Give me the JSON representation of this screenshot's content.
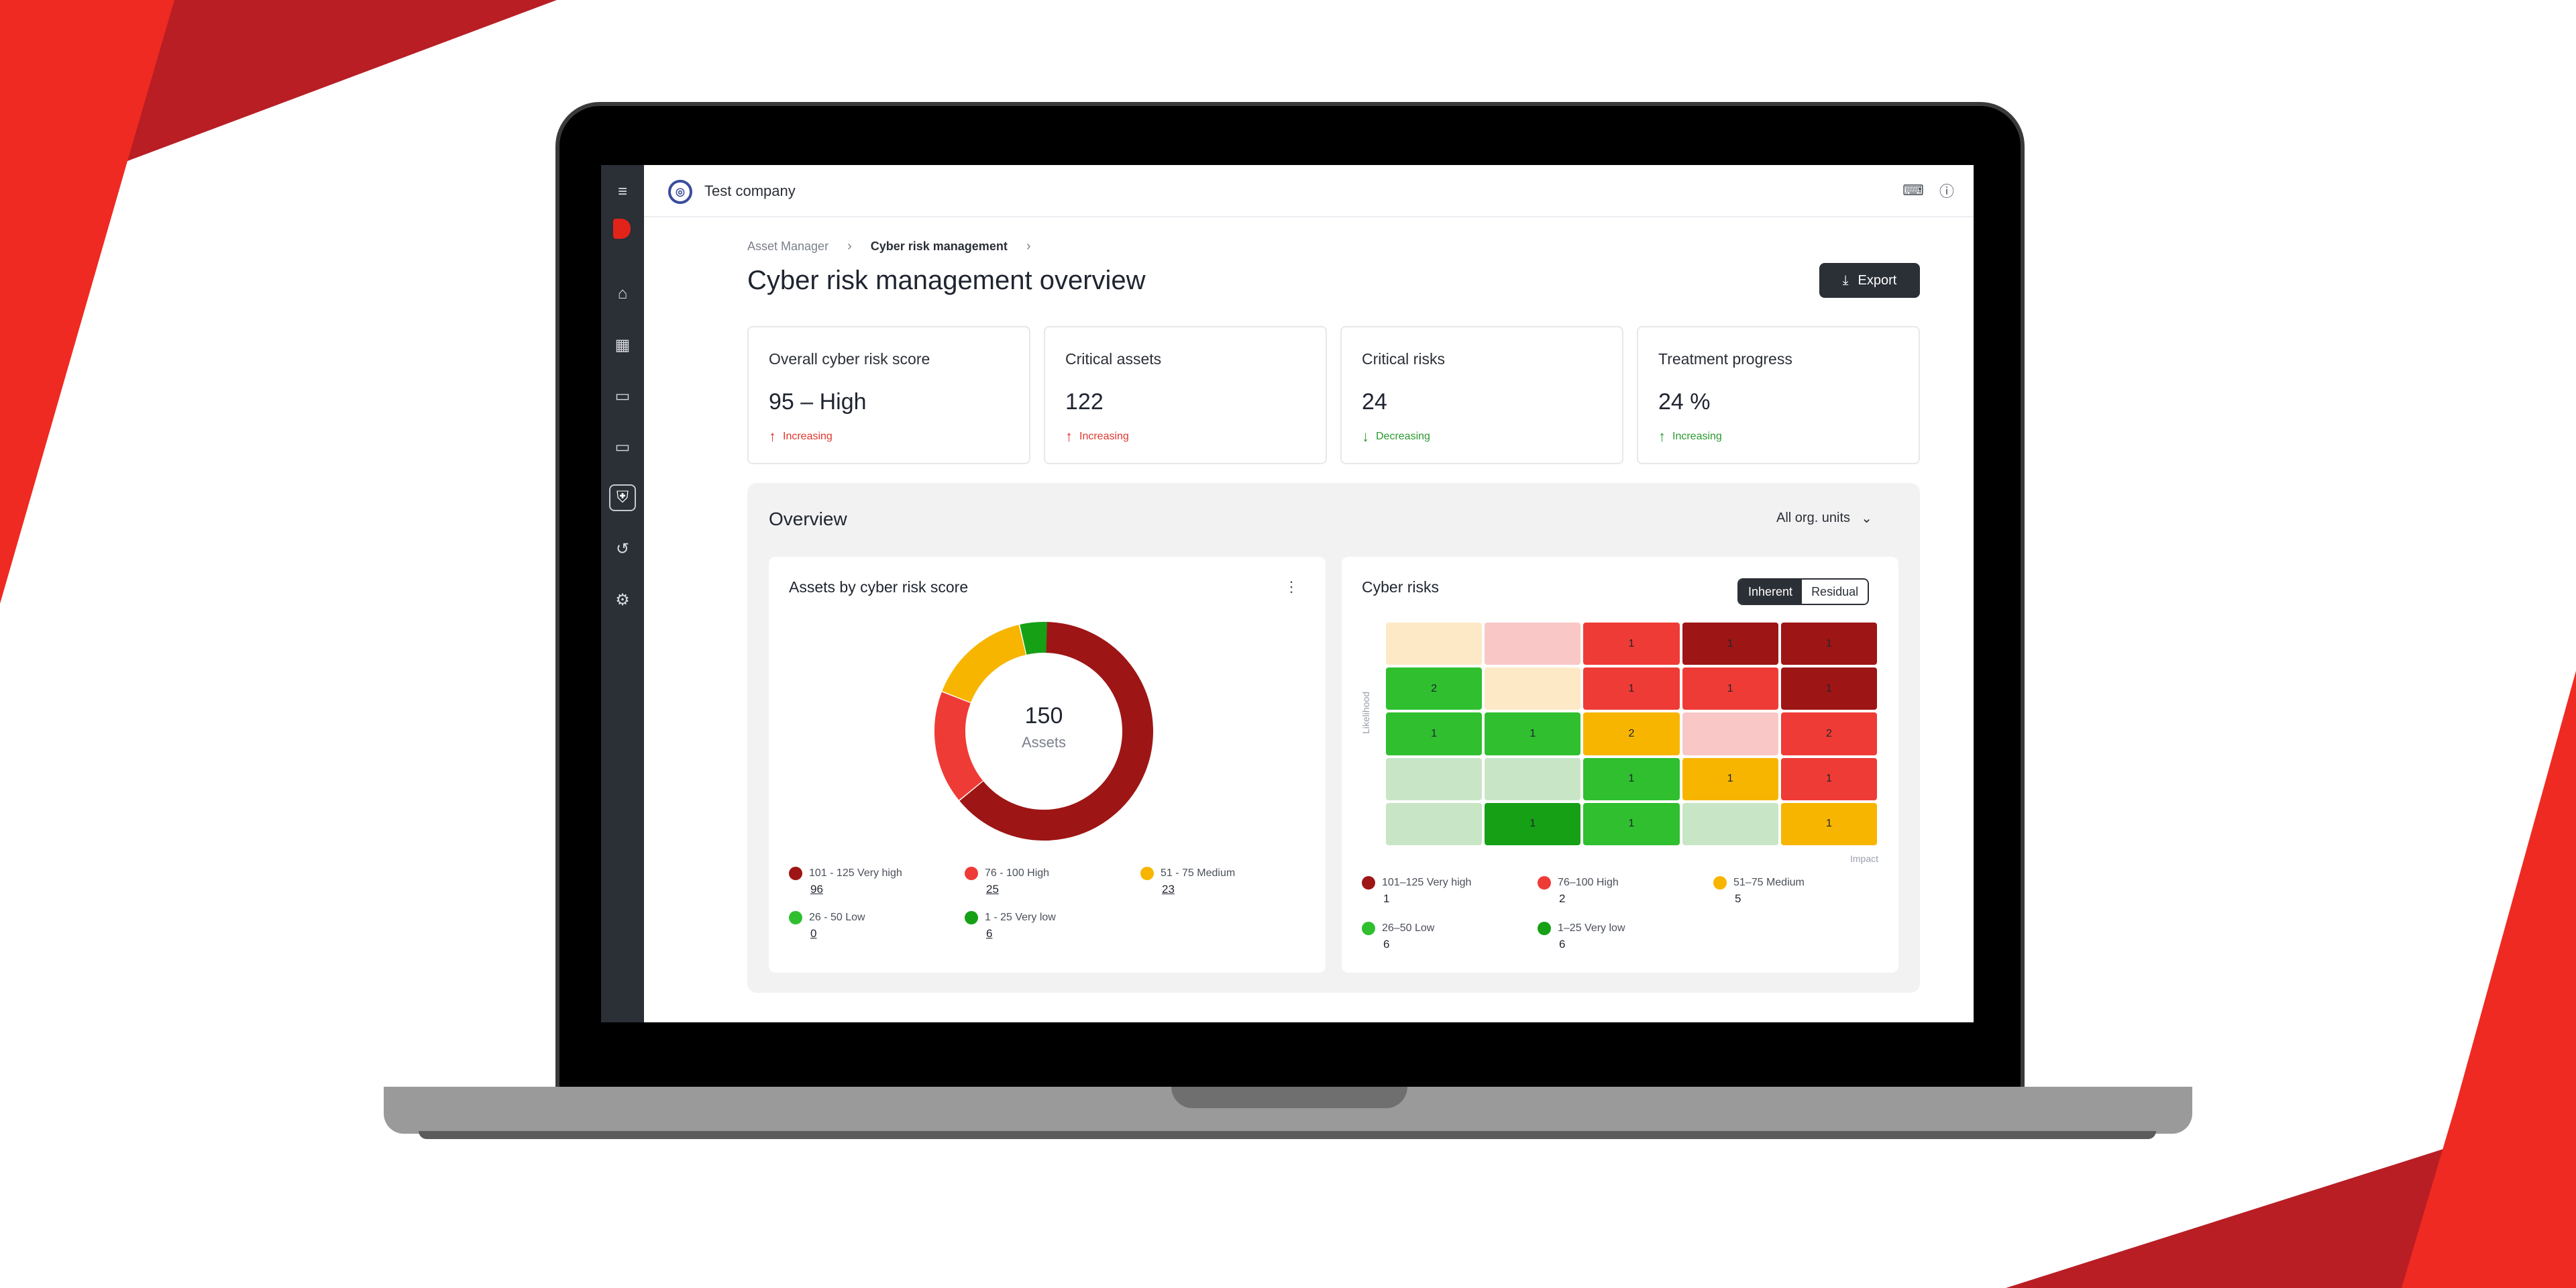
{
  "company": {
    "name": "Test company"
  },
  "breadcrumb": {
    "items": [
      "Asset Manager",
      "Cyber risk management"
    ]
  },
  "page": {
    "title": "Cyber risk management overview",
    "export_label": "Export"
  },
  "kpis": [
    {
      "label": "Overall cyber risk score",
      "value": "95 – High",
      "trend": "Increasing",
      "direction": "up",
      "color": "#e0362c"
    },
    {
      "label": "Critical assets",
      "value": "122",
      "trend": "Increasing",
      "direction": "up",
      "color": "#e0362c"
    },
    {
      "label": "Critical risks",
      "value": "24",
      "trend": "Decreasing",
      "direction": "down",
      "color": "#2a9a2f"
    },
    {
      "label": "Treatment progress",
      "value": "24 %",
      "trend": "Increasing",
      "direction": "up",
      "color": "#2a9a2f"
    }
  ],
  "overview": {
    "title": "Overview",
    "org_filter": "All org. units"
  },
  "assets_panel": {
    "title": "Assets by cyber risk score",
    "center_value": "150",
    "center_label": "Assets",
    "legend": [
      {
        "label": "101 - 125 Very high",
        "value": "96",
        "color": "#9e1515"
      },
      {
        "label": "76 - 100 High",
        "value": "25",
        "color": "#ef3b36"
      },
      {
        "label": "51 - 75 Medium",
        "value": "23",
        "color": "#f7b500"
      },
      {
        "label": "26 - 50 Low",
        "value": "0",
        "color": "#2fbf2f"
      },
      {
        "label": "1 - 25 Very low",
        "value": "6",
        "color": "#16a016"
      }
    ]
  },
  "risks_panel": {
    "title": "Cyber risks",
    "toggle": {
      "on": "Inherent",
      "off": "Residual"
    },
    "axis_y": "Likelihood",
    "axis_x": "Impact",
    "legend": [
      {
        "label": "101–125 Very high",
        "value": "1",
        "color": "#9e1515"
      },
      {
        "label": "76–100 High",
        "value": "2",
        "color": "#ef3b36"
      },
      {
        "label": "51–75 Medium",
        "value": "5",
        "color": "#f7b500"
      },
      {
        "label": "26–50 Low",
        "value": "6",
        "color": "#2fbf2f"
      },
      {
        "label": "1–25 Very low",
        "value": "6",
        "color": "#16a016"
      }
    ]
  },
  "chart_data": [
    {
      "type": "pie",
      "categories": [
        "101 - 125 Very high",
        "76 - 100 High",
        "51 - 75 Medium",
        "26 - 50 Low",
        "1 - 25 Very low"
      ],
      "values": [
        96,
        25,
        23,
        0,
        6
      ],
      "colors": [
        "#9e1515",
        "#ef3b36",
        "#f7b500",
        "#2fbf2f",
        "#16a016"
      ],
      "donut": true
    },
    {
      "type": "heatmap",
      "xlabel": "Impact",
      "ylabel": "Likelihood",
      "rows": [
        [
          {
            "c": "#fde9c6",
            "v": ""
          },
          {
            "c": "#f9c8c6",
            "v": ""
          },
          {
            "c": "#ef3b36",
            "v": "1"
          },
          {
            "c": "#9e1515",
            "v": "1"
          },
          {
            "c": "#9e1515",
            "v": "1"
          }
        ],
        [
          {
            "c": "#2fbf2f",
            "v": "2"
          },
          {
            "c": "#fde9c6",
            "v": ""
          },
          {
            "c": "#ef3b36",
            "v": "1"
          },
          {
            "c": "#ef3b36",
            "v": "1"
          },
          {
            "c": "#9e1515",
            "v": "1"
          }
        ],
        [
          {
            "c": "#2fbf2f",
            "v": "1"
          },
          {
            "c": "#2fbf2f",
            "v": "1"
          },
          {
            "c": "#f7b500",
            "v": "2"
          },
          {
            "c": "#f9c8c6",
            "v": ""
          },
          {
            "c": "#ef3b36",
            "v": "2"
          }
        ],
        [
          {
            "c": "#c8e6c6",
            "v": ""
          },
          {
            "c": "#c8e6c6",
            "v": ""
          },
          {
            "c": "#2fbf2f",
            "v": "1"
          },
          {
            "c": "#f7b500",
            "v": "1"
          },
          {
            "c": "#ef3b36",
            "v": "1"
          }
        ],
        [
          {
            "c": "#c8e6c6",
            "v": ""
          },
          {
            "c": "#16a016",
            "v": "1"
          },
          {
            "c": "#2fbf2f",
            "v": "1"
          },
          {
            "c": "#c8e6c6",
            "v": ""
          },
          {
            "c": "#f7b500",
            "v": "1"
          }
        ]
      ]
    }
  ]
}
